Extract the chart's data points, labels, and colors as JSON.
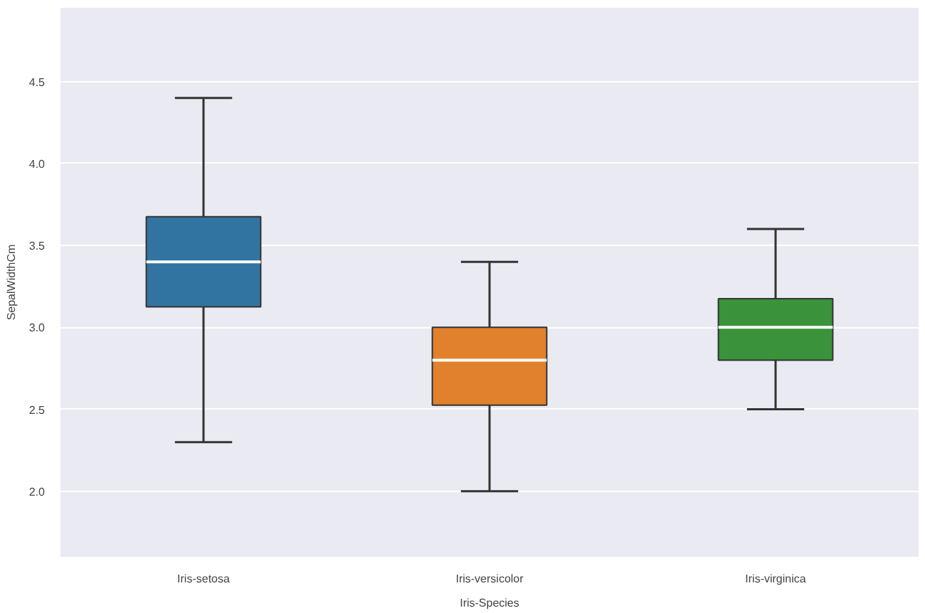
{
  "chart_data": {
    "type": "box",
    "xlabel": "Iris-Species",
    "ylabel": "SepalWidthCm",
    "categories": [
      "Iris-setosa",
      "Iris-versicolor",
      "Iris-virginica"
    ],
    "colors": [
      "#3274a1",
      "#e1812c",
      "#3a923a"
    ],
    "boxes": [
      {
        "low": 2.3,
        "q1": 3.125,
        "median": 3.4,
        "q3": 3.675,
        "high": 4.4
      },
      {
        "low": 2.0,
        "q1": 2.525,
        "median": 2.8,
        "q3": 3.0,
        "high": 3.4
      },
      {
        "low": 2.5,
        "q1": 2.8,
        "median": 3.0,
        "q3": 3.175,
        "high": 3.6
      }
    ],
    "ylim": [
      1.6,
      4.95
    ],
    "yticks": [
      {
        "value": 2,
        "label": "2.0"
      },
      2.5,
      {
        "value": 3,
        "label": "3.0"
      },
      3.5,
      {
        "value": 4,
        "label": "4.0"
      },
      4.5
    ],
    "grid": "y"
  }
}
